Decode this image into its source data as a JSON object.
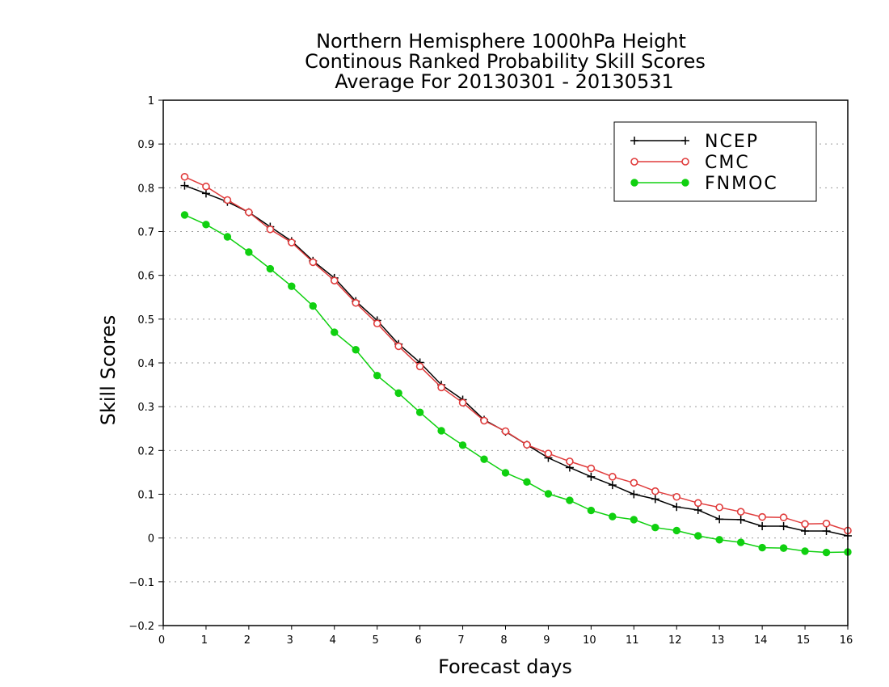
{
  "chart_data": {
    "type": "line",
    "title_lines": [
      "Northern Hemisphere 1000hPa Height",
      "Continous Ranked Probability Skill Scores",
      "Average For 20130301 - 20130531"
    ],
    "xlabel": "Forecast days",
    "ylabel": "Skill Scores",
    "xlim": [
      0,
      16
    ],
    "ylim": [
      -0.2,
      1
    ],
    "xticks": [
      0,
      1,
      2,
      3,
      4,
      5,
      6,
      7,
      8,
      9,
      10,
      11,
      12,
      13,
      14,
      15,
      16
    ],
    "xtick_labels": [
      "0",
      "1",
      "2",
      "3",
      "4",
      "5",
      "6",
      "7",
      "8",
      "9",
      "10",
      "11",
      "12",
      "13",
      "14",
      "15",
      "16"
    ],
    "yticks": [
      -0.2,
      -0.1,
      0,
      0.1,
      0.2,
      0.3,
      0.4,
      0.5,
      0.6,
      0.7,
      0.8,
      0.9,
      1
    ],
    "ytick_labels": [
      "−0.2",
      "−0.1",
      "0",
      "0.1",
      "0.2",
      "0.3",
      "0.4",
      "0.5",
      "0.6",
      "0.7",
      "0.8",
      "0.9",
      "1"
    ],
    "grid": "horizontal dotted",
    "legend_position": "top-right",
    "x": [
      0.5,
      1,
      1.5,
      2,
      2.5,
      3,
      3.5,
      4,
      4.5,
      5,
      5.5,
      6,
      6.5,
      7,
      7.5,
      8,
      8.5,
      9,
      9.5,
      10,
      10.5,
      11,
      11.5,
      12,
      12.5,
      13,
      13.5,
      14,
      14.5,
      15,
      15.5,
      16
    ],
    "series": [
      {
        "name": "NCEP",
        "color": "#000000",
        "marker": "plus",
        "values": [
          0.805,
          0.787,
          0.768,
          0.744,
          0.711,
          0.678,
          0.633,
          0.594,
          0.541,
          0.497,
          0.443,
          0.401,
          0.35,
          0.316,
          0.27,
          0.243,
          0.213,
          0.183,
          0.161,
          0.14,
          0.121,
          0.1,
          0.089,
          0.071,
          0.064,
          0.043,
          0.042,
          0.027,
          0.027,
          0.016,
          0.016,
          0.005
        ]
      },
      {
        "name": "CMC",
        "color": "#e03c3c",
        "marker": "open-circle",
        "values": [
          0.825,
          0.803,
          0.772,
          0.744,
          0.705,
          0.675,
          0.63,
          0.588,
          0.537,
          0.49,
          0.438,
          0.392,
          0.344,
          0.309,
          0.268,
          0.244,
          0.213,
          0.193,
          0.175,
          0.159,
          0.14,
          0.126,
          0.107,
          0.094,
          0.08,
          0.07,
          0.06,
          0.048,
          0.047,
          0.032,
          0.033,
          0.017
        ]
      },
      {
        "name": "FNMOC",
        "color": "#10d010",
        "marker": "filled-circle",
        "values": [
          0.738,
          0.716,
          0.688,
          0.653,
          0.615,
          0.575,
          0.53,
          0.47,
          0.43,
          0.371,
          0.331,
          0.287,
          0.245,
          0.212,
          0.18,
          0.149,
          0.128,
          0.101,
          0.086,
          0.063,
          0.049,
          0.042,
          0.024,
          0.017,
          0.005,
          -0.004,
          -0.01,
          -0.022,
          -0.023,
          -0.03,
          -0.033,
          -0.032
        ]
      }
    ]
  }
}
